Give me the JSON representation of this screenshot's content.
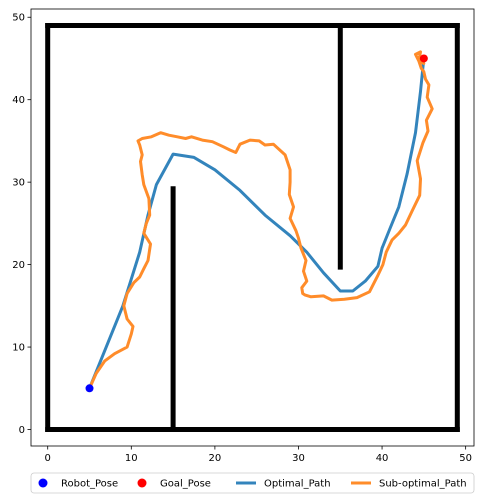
{
  "chart_data": {
    "type": "line",
    "xlim": [
      -2,
      51
    ],
    "ylim": [
      -2,
      51
    ],
    "xticks": [
      0,
      10,
      20,
      30,
      40,
      50
    ],
    "yticks": [
      0,
      10,
      20,
      30,
      40,
      50
    ],
    "grid": false,
    "legend_placement": "bottom",
    "walls": [
      {
        "x": [
          0,
          49
        ],
        "y": [
          0,
          0
        ]
      },
      {
        "x": [
          49,
          49
        ],
        "y": [
          0,
          49
        ]
      },
      {
        "x": [
          49,
          0
        ],
        "y": [
          49,
          49
        ]
      },
      {
        "x": [
          0,
          0
        ],
        "y": [
          49,
          0
        ]
      },
      {
        "x": [
          15,
          15
        ],
        "y": [
          0,
          29.2
        ]
      },
      {
        "x": [
          35,
          35
        ],
        "y": [
          19.7,
          49
        ]
      }
    ],
    "series": [
      {
        "name": "Optimal_Path",
        "color": "#3384bc",
        "x": [
          5,
          7,
          9,
          11,
          12,
          13,
          15,
          17.5,
          20,
          23,
          26,
          29,
          31,
          33,
          35,
          36.5,
          38,
          39.5,
          40,
          41,
          42,
          43,
          44,
          44.6,
          45
        ],
        "y": [
          5,
          10,
          15,
          21.5,
          26,
          29.7,
          33.4,
          33,
          31.5,
          29,
          26,
          23.5,
          21.5,
          19,
          16.8,
          16.8,
          18,
          19.8,
          22,
          24.5,
          27,
          31,
          36,
          41,
          45
        ]
      },
      {
        "name": "Sub-optimal_Path",
        "color": "#ff8c2a",
        "x": [
          5,
          5.8,
          6.8,
          8,
          9.5,
          10,
          10.2,
          9.5,
          9.1,
          9.5,
          10.3,
          11,
          11.5,
          12,
          12.3,
          11.5,
          11.8,
          12.2,
          12.1,
          11.5,
          11.3,
          11.1,
          11.3,
          11.0,
          10.8,
          11.3,
          12.4,
          13.5,
          14.5,
          15.5,
          16.5,
          17.2,
          18.5,
          19.7,
          21,
          21.8,
          22.5,
          23,
          24.2,
          25.3,
          26,
          27,
          28.4,
          29,
          29.0,
          28.9,
          29.4,
          29.0,
          29.7,
          30.0,
          30.3,
          30.9,
          30.6,
          31.0,
          30.4,
          30.5,
          30.8,
          31.5,
          33,
          34,
          35.5,
          37,
          38.5,
          39.5,
          40.1,
          40.5,
          41.2,
          42.0,
          42.8,
          43.6,
          44.5,
          44.6,
          44.2,
          44.9,
          45.5,
          45.3,
          46.0,
          45.4,
          45.6,
          45.2,
          45.0,
          44.7,
          44.4,
          44.6,
          44.0,
          44.4,
          45.0,
          44.3,
          45.0
        ],
        "y": [
          5,
          6.8,
          8.3,
          9.2,
          10.0,
          11.6,
          12.5,
          13.4,
          15,
          16.5,
          17.8,
          18.5,
          19.5,
          20.5,
          22.5,
          23.8,
          25,
          26,
          28,
          29.7,
          30.9,
          32.5,
          33.3,
          34.5,
          35,
          35.3,
          35.5,
          36,
          35.7,
          35.5,
          35.3,
          35.5,
          35.1,
          34.9,
          34.3,
          33.9,
          33.6,
          34.6,
          35.1,
          35.0,
          34.5,
          34.6,
          33.3,
          31.5,
          30,
          28.5,
          27,
          25.6,
          24.1,
          23.2,
          22.0,
          20.5,
          19.2,
          18.0,
          17.2,
          16.5,
          16.3,
          16.1,
          16.2,
          15.7,
          15.8,
          16.0,
          16.7,
          18.7,
          20.0,
          21.5,
          23.0,
          23.8,
          24.8,
          26.5,
          28.4,
          30.4,
          32.6,
          34.8,
          36.2,
          37.5,
          38.9,
          40.3,
          41.8,
          42.5,
          43.4,
          43.8,
          44.7,
          45.8,
          45.5,
          44.7,
          44.4,
          45.0,
          45.0
        ]
      }
    ],
    "points": [
      {
        "name": "Robot_Pose",
        "color": "#0000ff",
        "x": 5,
        "y": 5
      },
      {
        "name": "Goal_Pose",
        "color": "#ff0000",
        "x": 45,
        "y": 45
      }
    ],
    "legend": [
      {
        "label": "Robot_Pose",
        "kind": "marker",
        "color": "#0000ff"
      },
      {
        "label": "Goal_Pose",
        "kind": "marker",
        "color": "#ff0000"
      },
      {
        "label": "Optimal_Path",
        "kind": "line",
        "color": "#3384bc"
      },
      {
        "label": "Sub-optimal_Path",
        "kind": "line",
        "color": "#ff8c2a"
      }
    ]
  }
}
